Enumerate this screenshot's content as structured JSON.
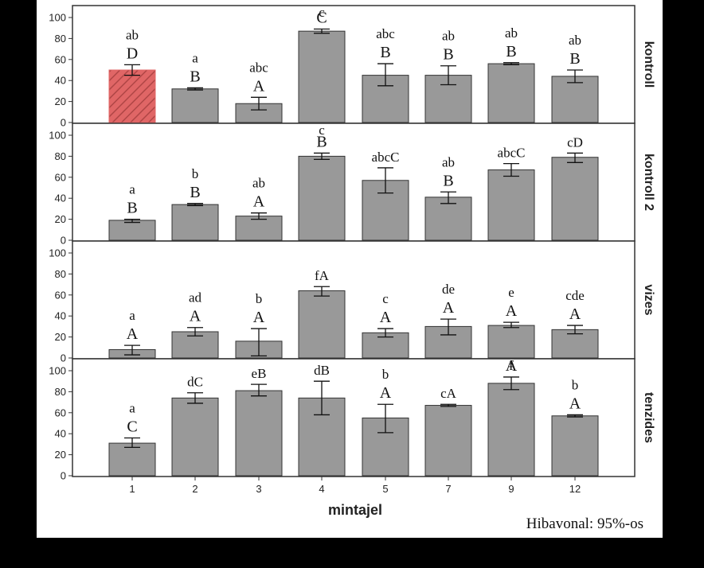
{
  "chart_data": {
    "type": "bar",
    "categories": [
      "1",
      "2",
      "3",
      "4",
      "5",
      "7",
      "9",
      "12"
    ],
    "x_title": "mintajel",
    "ylim": [
      0,
      100
    ],
    "yticks": [
      0,
      20,
      40,
      60,
      80,
      100
    ],
    "grid": false,
    "colors": {
      "bar": "#999999",
      "highlight": "#e06666",
      "highlight_hatch": "#b04646"
    },
    "note": "Hibavonal: 95%-os",
    "highlight": {
      "panel": 0,
      "category_index": 0
    },
    "panels": [
      {
        "name": "kontroll",
        "values": [
          50,
          32,
          18,
          87,
          45,
          45,
          56,
          44
        ],
        "err_low": [
          45,
          31,
          12,
          85,
          35,
          36,
          55,
          38
        ],
        "err_high": [
          55,
          33,
          24,
          89,
          56,
          54,
          57,
          50
        ],
        "labels_small": [
          "ab",
          "a",
          "abc",
          "c",
          "abc",
          "ab",
          "ab",
          "ab"
        ],
        "labels_big": [
          "D",
          "B",
          "A",
          "C",
          "B",
          "B",
          "B",
          "B"
        ]
      },
      {
        "name": "kontroll 2",
        "values": [
          19,
          34,
          23,
          80,
          57,
          41,
          67,
          79
        ],
        "err_low": [
          17,
          33,
          20,
          77,
          45,
          35,
          61,
          74
        ],
        "err_high": [
          20,
          35,
          26,
          83,
          69,
          46,
          73,
          83
        ],
        "labels_small": [
          "a",
          "b",
          "ab",
          "c",
          "abcC",
          "ab",
          "abcC",
          "cD"
        ],
        "labels_big": [
          "B",
          "B",
          "A",
          "B",
          "",
          "B",
          "",
          ""
        ]
      },
      {
        "name": "vizes",
        "values": [
          8,
          25,
          16,
          64,
          24,
          30,
          31,
          27
        ],
        "err_low": [
          3,
          21,
          2,
          59,
          20,
          22,
          29,
          23
        ],
        "err_high": [
          12,
          29,
          28,
          68,
          28,
          37,
          34,
          31
        ],
        "labels_small": [
          "a",
          "ad",
          "b",
          "fA",
          "c",
          "de",
          "e",
          "cde"
        ],
        "labels_big": [
          "A",
          "A",
          "A",
          "",
          "A",
          "A",
          "A",
          "A"
        ]
      },
      {
        "name": "tenzides",
        "values": [
          31,
          74,
          81,
          74,
          55,
          67,
          88,
          57
        ],
        "err_low": [
          27,
          69,
          76,
          58,
          41,
          66,
          82,
          56
        ],
        "err_high": [
          36,
          79,
          87,
          90,
          68,
          68,
          94,
          58
        ],
        "labels_small": [
          "a",
          "dC",
          "eB",
          "dB",
          "b",
          "cA",
          "f",
          "b"
        ],
        "labels_big": [
          "C",
          "",
          "",
          "",
          "A",
          "",
          "A",
          "A"
        ]
      }
    ]
  }
}
